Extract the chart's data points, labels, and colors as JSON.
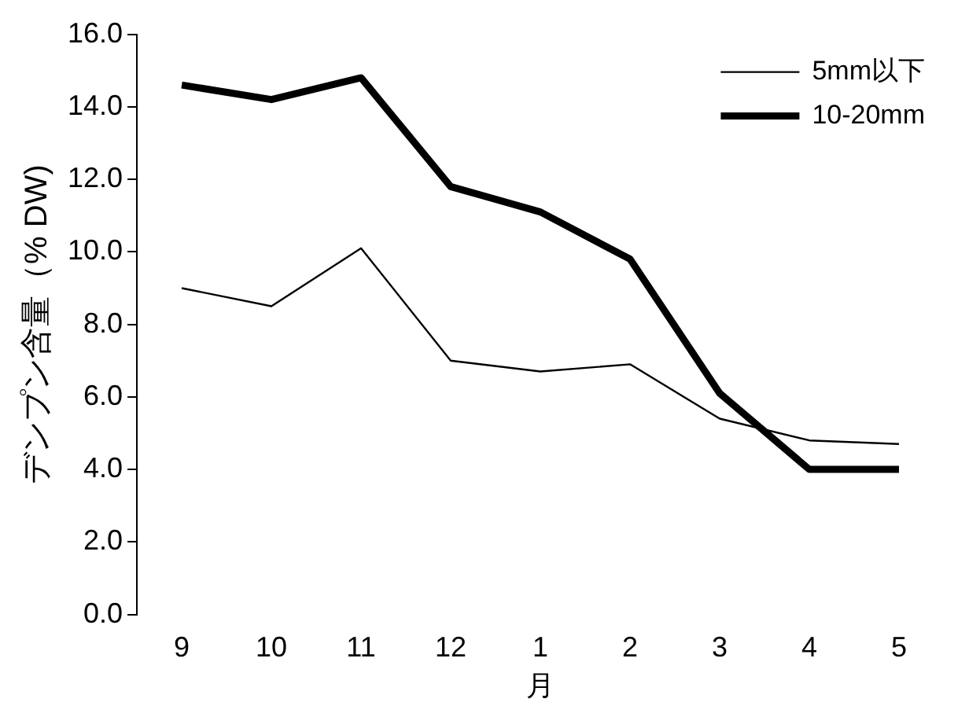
{
  "chart_data": {
    "type": "line",
    "xlabel": "月",
    "ylabel": "デンプン含量（% DW)",
    "categories": [
      "9",
      "10",
      "11",
      "12",
      "1",
      "2",
      "3",
      "4",
      "5"
    ],
    "series": [
      {
        "name": "5mm以下",
        "color": "#000000",
        "values": [
          9.0,
          8.5,
          10.1,
          7.0,
          6.7,
          6.9,
          5.4,
          4.8,
          4.7
        ]
      },
      {
        "name": "10-20mm",
        "color": "#000000",
        "values": [
          14.6,
          14.2,
          14.8,
          11.8,
          11.1,
          9.8,
          6.1,
          4.0,
          4.0
        ]
      }
    ],
    "ylim": [
      0,
      16
    ],
    "yticks": [
      {
        "value": 0,
        "label": "0.0"
      },
      {
        "value": 2,
        "label": "2.0"
      },
      {
        "value": 4,
        "label": "4.0"
      },
      {
        "value": 6,
        "label": "6.0"
      },
      {
        "value": 8,
        "label": "8.0"
      },
      {
        "value": 10,
        "label": "10.0"
      },
      {
        "value": 12,
        "label": "12.0"
      },
      {
        "value": 14,
        "label": "14.0"
      },
      {
        "value": 16,
        "label": "16.0"
      }
    ],
    "grid": false,
    "legend": "top right",
    "marker": "none",
    "line_style": "solid"
  }
}
